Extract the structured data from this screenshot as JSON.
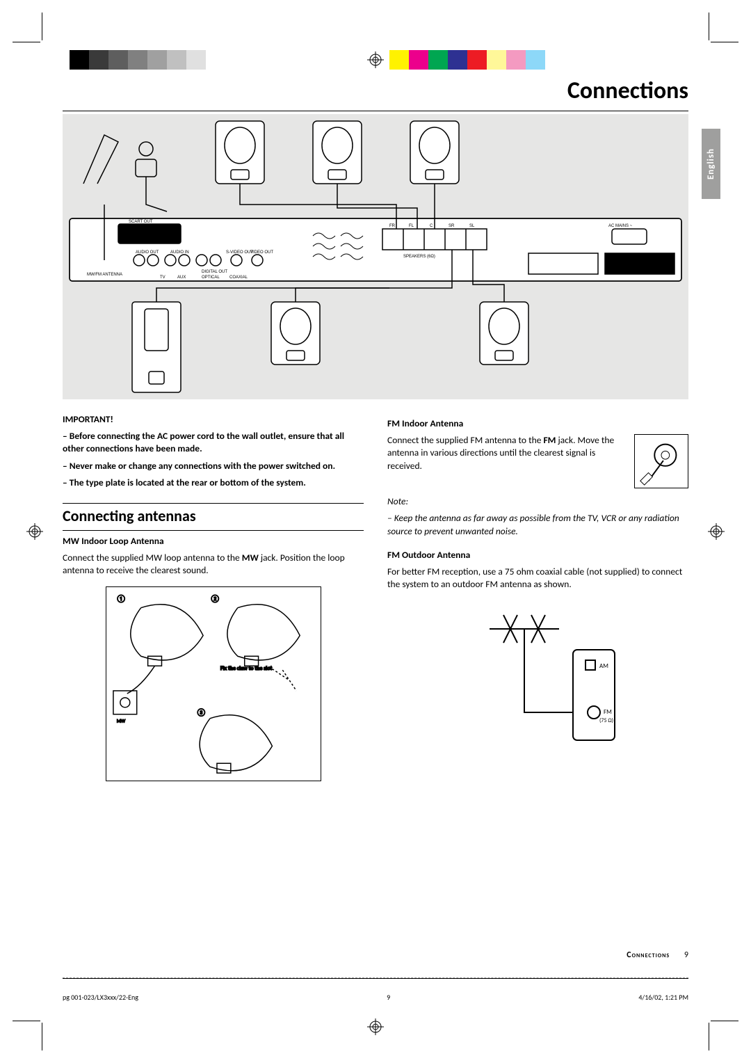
{
  "title": "Connections",
  "language_tab": "English",
  "color_bar_left": [
    "#000000",
    "#3a3a3a",
    "#5e5e5e",
    "#808080",
    "#a0a0a0",
    "#c0c0c0",
    "#e0e0e0",
    "#ffffff"
  ],
  "color_bar_right": [
    "#fff200",
    "#ec008c",
    "#00a651",
    "#2e3192",
    "#ed1c24",
    "#fff799",
    "#f49ac1",
    "#8dd8f8",
    "#ffffff"
  ],
  "important": {
    "heading": "IMPORTANT!",
    "items": [
      "Before connecting the AC power cord to the wall outlet, ensure that all other connections have been made.",
      "Never make or change any connections with the power switched on.",
      "The type plate is located at the rear or bottom of the system."
    ]
  },
  "section_heading": "Connecting antennas",
  "mw": {
    "heading": "MW Indoor Loop Antenna",
    "body_pre": "Connect the supplied MW loop antenna to the ",
    "bold": "MW",
    "body_post": " jack.  Position the loop antenna to receive the clearest sound.",
    "diagram_caption": "Fix the claw to the slot"
  },
  "fm_indoor": {
    "heading": "FM Indoor Antenna",
    "body_pre": "Connect the supplied FM antenna to the ",
    "bold": "FM",
    "body_post": " jack. Move the antenna in various directions until the clearest signal is received.",
    "note_label": "Note:",
    "note": "Keep the antenna as far away as possible from the TV, VCR or any radiation source to prevent unwanted noise."
  },
  "fm_outdoor": {
    "heading": "FM Outdoor Antenna",
    "body": "For better FM reception, use a 75 ohm coaxial cable (not supplied) to connect the system to an outdoor FM antenna as shown.",
    "labels": {
      "am": "AM",
      "fm": "FM",
      "ohm": "(75 Ω)"
    }
  },
  "rear_panel_labels": {
    "scart": "SCART OUT",
    "audio_out": "AUDIO OUT",
    "audio_in": "AUDIO IN",
    "svideo": "S-VIDEO OUT",
    "video": "VIDEO OUT",
    "digital_out": "DIGITAL OUT",
    "optical": "OPTICAL",
    "coaxial": "COAXIAL",
    "antenna": "MW/FM ANTENNA",
    "tv": "TV",
    "aux": "AUX",
    "ac": "AC MAINS ~",
    "speakers": "SPEAKERS (6Ω)",
    "fr": "FR",
    "fl": "FL",
    "c": "C",
    "sr": "SR",
    "sl": "SL"
  },
  "footer": {
    "section": "Connections",
    "page": "9",
    "file": "pg 001-023/LX3xxx/22-Eng",
    "mid": "9",
    "date": "4/16/02, 1:21 PM"
  }
}
